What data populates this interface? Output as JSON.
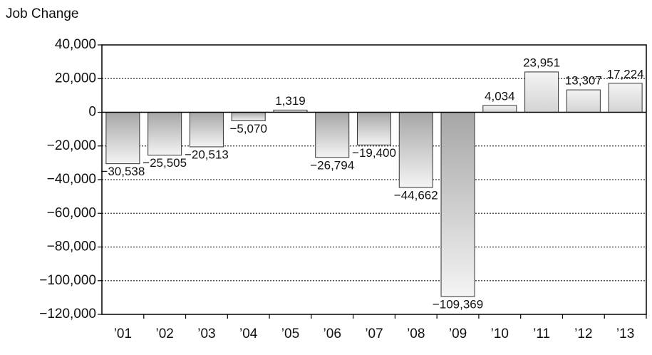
{
  "chart_data": {
    "type": "bar",
    "title": "Job Change",
    "categories": [
      "’01",
      "’02",
      "’03",
      "’04",
      "’05",
      "’06",
      "’07",
      "’08",
      "’09",
      "’10",
      "’11",
      "’12",
      "’13"
    ],
    "values": [
      -30538,
      -25505,
      -20513,
      -5070,
      1319,
      -26794,
      -19400,
      -44662,
      -109369,
      4034,
      23951,
      13307,
      17224
    ],
    "value_labels": [
      "−30,538",
      "−25,505",
      "−20,513",
      "−5,070",
      "1,319",
      "−26,794",
      "−19,400",
      "−44,662",
      "−109,369",
      "4,034",
      "23,951",
      "13,307",
      "17,224"
    ],
    "color": "#a6a6a6",
    "ylim": [
      -120000,
      40000
    ],
    "yticks": [
      {
        "value": -120000,
        "label": "−120,000"
      },
      {
        "value": -100000,
        "label": "−100,000"
      },
      {
        "value": -80000,
        "label": "−80,000"
      },
      {
        "value": -60000,
        "label": "−60,000"
      },
      {
        "value": -40000,
        "label": "−40,000"
      },
      {
        "value": -20000,
        "label": "−20,000"
      },
      0,
      {
        "value": 20000,
        "label": "20,000"
      },
      {
        "value": 40000,
        "label": "40,000"
      }
    ],
    "grid": true
  }
}
